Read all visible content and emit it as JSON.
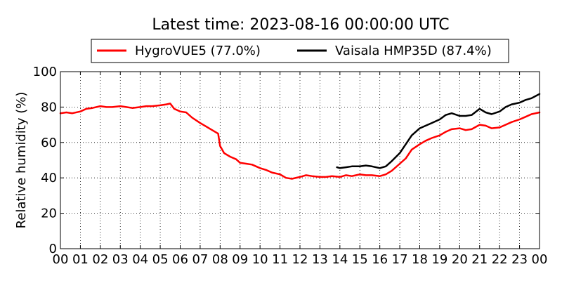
{
  "chart_data": {
    "type": "line",
    "title": "Latest time: 2023-08-16 00:00:00 UTC",
    "xlabel": "",
    "ylabel": "Relative humidity (%)",
    "x_ticks": [
      "00",
      "01",
      "02",
      "03",
      "04",
      "05",
      "06",
      "07",
      "08",
      "09",
      "10",
      "11",
      "12",
      "13",
      "14",
      "15",
      "16",
      "17",
      "18",
      "19",
      "20",
      "21",
      "22",
      "23",
      "00"
    ],
    "xlim": [
      0,
      24
    ],
    "ylim": [
      0,
      100
    ],
    "y_ticks": [
      "0",
      "20",
      "40",
      "60",
      "80",
      "100"
    ],
    "grid": true,
    "legend_position": "top",
    "series": [
      {
        "name": "HygroVUE5 (77.0%)",
        "color": "#ff0000",
        "x": [
          0,
          0.3,
          0.6,
          1.0,
          1.3,
          1.6,
          2.0,
          2.3,
          2.6,
          3.0,
          3.3,
          3.6,
          4.0,
          4.3,
          4.6,
          5.0,
          5.3,
          5.5,
          5.7,
          6.0,
          6.3,
          6.6,
          7.0,
          7.3,
          7.6,
          7.9,
          8.0,
          8.2,
          8.5,
          8.8,
          9.0,
          9.3,
          9.6,
          10.0,
          10.3,
          10.6,
          11.0,
          11.3,
          11.6,
          12.0,
          12.3,
          12.6,
          13.0,
          13.3,
          13.6,
          14.0,
          14.3,
          14.6,
          15.0,
          15.3,
          15.6,
          16.0,
          16.3,
          16.6,
          17.0,
          17.3,
          17.6,
          18.0,
          18.3,
          18.6,
          19.0,
          19.3,
          19.6,
          20.0,
          20.3,
          20.6,
          21.0,
          21.3,
          21.6,
          22.0,
          22.3,
          22.6,
          23.0,
          23.3,
          23.6,
          24.0
        ],
        "values": [
          76.5,
          77.0,
          76.5,
          77.5,
          79.0,
          79.5,
          80.5,
          80.0,
          80.0,
          80.5,
          80.0,
          79.5,
          80.0,
          80.5,
          80.5,
          81.0,
          81.5,
          82.0,
          79.0,
          77.5,
          77.0,
          74.0,
          71.0,
          69.0,
          67.0,
          65.0,
          58.0,
          54.0,
          52.0,
          50.5,
          48.5,
          48.0,
          47.5,
          45.5,
          44.5,
          43.0,
          42.0,
          40.0,
          39.5,
          40.5,
          41.5,
          41.0,
          40.5,
          40.5,
          41.0,
          40.5,
          41.5,
          41.0,
          42.0,
          41.5,
          41.5,
          41.0,
          42.0,
          44.0,
          48.0,
          51.0,
          56.0,
          59.0,
          61.0,
          62.5,
          64.0,
          66.0,
          67.5,
          68.0,
          67.0,
          67.5,
          70.0,
          69.5,
          68.0,
          68.5,
          70.0,
          71.5,
          73.0,
          74.5,
          76.0,
          77.0
        ]
      },
      {
        "name": "Vaisala HMP35D (87.4%)",
        "color": "#000000",
        "x": [
          13.85,
          14.0,
          14.3,
          14.6,
          15.0,
          15.3,
          15.6,
          16.0,
          16.3,
          16.6,
          17.0,
          17.3,
          17.6,
          18.0,
          18.3,
          18.6,
          19.0,
          19.3,
          19.6,
          20.0,
          20.3,
          20.6,
          21.0,
          21.3,
          21.6,
          22.0,
          22.3,
          22.6,
          23.0,
          23.3,
          23.6,
          24.0
        ],
        "values": [
          46.0,
          45.5,
          46.0,
          46.5,
          46.5,
          47.0,
          46.5,
          45.5,
          46.5,
          49.5,
          54.0,
          59.0,
          64.0,
          68.0,
          69.5,
          71.0,
          73.0,
          75.5,
          76.5,
          75.0,
          75.0,
          75.5,
          79.0,
          77.0,
          76.0,
          77.5,
          80.0,
          81.5,
          82.5,
          84.0,
          85.0,
          87.4
        ]
      }
    ]
  }
}
